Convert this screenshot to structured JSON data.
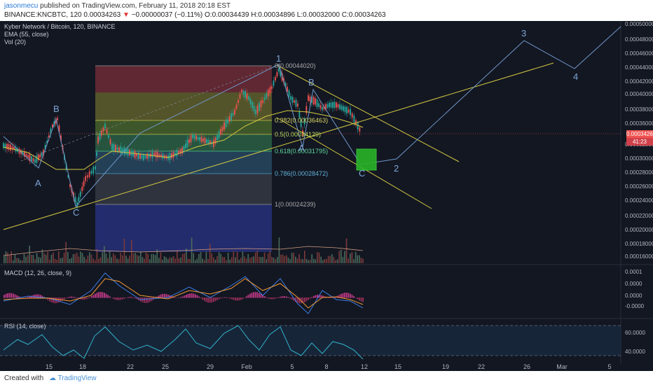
{
  "header": {
    "username": "jasonmecu",
    "published_text": "published on TradingView.com, February 11, 2018 20:18 EST",
    "symbol_prefix": "BINANCE:KNCBTC, 120",
    "last_price": "0.00034263",
    "change_text": "−0.00000037 (−0.11%)",
    "ohlc_text": "O:0.00034439 H:0.00034896 L:0.00032000 C:0.00034263"
  },
  "legend": {
    "title": "Kyber Network / Bitcoin, 120, BINANCE",
    "ema": "EMA (55, close)",
    "vol": "Vol (20)",
    "macd": "MACD (12, 26, close, 9)",
    "rsi": "RSI (14, close)"
  },
  "price_axis": {
    "labels": [
      "0.00050000",
      "0.00048000",
      "0.00046000",
      "0.00044000",
      "0.00042000",
      "0.00040000",
      "0.00038000",
      "0.00036000",
      "0.00034263",
      "0.00032000",
      "0.00030000",
      "0.00028000",
      "0.00026000",
      "0.00024000",
      "0.00022000",
      "0.00020000",
      "0.00018000",
      "0.00016000"
    ],
    "current_price": "0.00034263",
    "countdown": "41:23"
  },
  "macd_axis": {
    "labels": [
      "0.0001",
      "0.0000",
      "0.0000",
      "-0.0000"
    ]
  },
  "rsi_axis": {
    "labels": [
      "60.0000",
      "40.0000"
    ]
  },
  "time_axis": {
    "labels": [
      "15",
      "18",
      "22",
      "25",
      "29",
      "Feb",
      "5",
      "8",
      "12",
      "15",
      "19",
      "22",
      "26",
      "Mar",
      "5"
    ]
  },
  "fib_levels": [
    {
      "label": "0(0.00044020)"
    },
    {
      "label": "0.382(0.00036463)"
    },
    {
      "label": "0.5(0.00034129)"
    },
    {
      "label": "0.618(0.00031795)"
    },
    {
      "label": "0.786(0.00028472)"
    },
    {
      "label": "1(0.00024239)"
    }
  ],
  "wave_labels": [
    "A",
    "B",
    "C",
    "1",
    "A",
    "B",
    "C",
    "2",
    "3",
    "4"
  ],
  "colors": {
    "background": "#131722",
    "up": "#26a69a",
    "down": "#ef5350",
    "trendline": "#d4c941",
    "wave": "#6f97c8",
    "ema": "#d4c941",
    "macd_line": "#3d7ee6",
    "signal_line": "#f39a33",
    "rsi_line": "#31b3c9",
    "green_box": "#27b427"
  },
  "footer": {
    "created_with": "Created with",
    "brand": "TradingView"
  }
}
